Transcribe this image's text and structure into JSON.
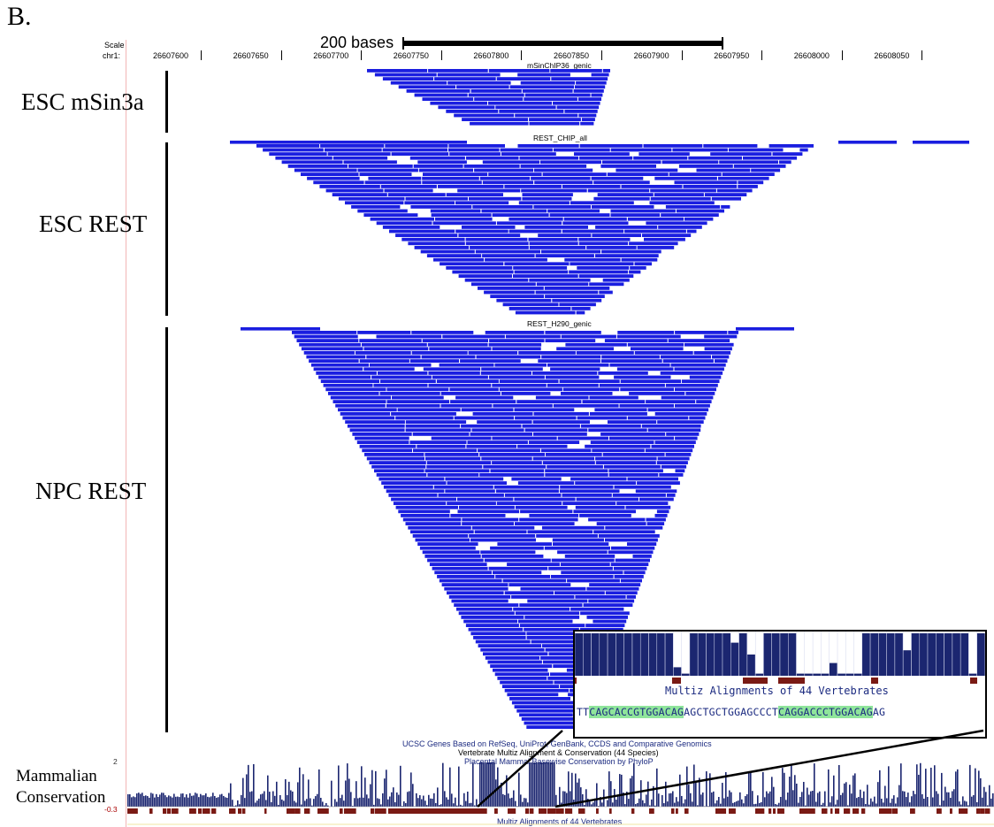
{
  "panel_letter": "B.",
  "scale": {
    "scale_label": "Scale",
    "chrom_label": "chr1:",
    "bar_label": "200 bases",
    "ticks": [
      "26607600",
      "26607650",
      "26607700",
      "26607750",
      "26607800",
      "26607850",
      "26607900",
      "26607950",
      "26608000",
      "26608050"
    ]
  },
  "tracks": [
    {
      "label": "ESC mSin3a",
      "title": "mSinChIP36_genic"
    },
    {
      "label": "ESC REST",
      "title": "REST_CHIP_all"
    },
    {
      "label": "NPC REST",
      "title": "REST_H290_genic"
    }
  ],
  "annotation_titles": [
    "UCSC Genes Based on RefSeq, UniProt, GenBank, CCDS and Comparative Genomics",
    "Vertebrate Multiz Alignment & Conservation (44 Species)",
    "Placental Mammal Basewise Conservation by PhyloP"
  ],
  "conservation": {
    "label_line1": "Mammalian",
    "label_line2": "Conservation",
    "ymax": "2",
    "ymin": "-0.3",
    "bottom_title": "Multiz Alignments of 44 Vertebrates"
  },
  "inset": {
    "title": "Multiz Alignments of 44 Vertebrates",
    "sequence": [
      {
        "text": "TT",
        "hl": false
      },
      {
        "text": "CAGCACCGTGGACAG",
        "hl": true
      },
      {
        "text": "AGCTGCTGGAGCCCT",
        "hl": false
      },
      {
        "text": "CAGGACCCTGGACAG",
        "hl": true
      },
      {
        "text": "AG",
        "hl": false
      }
    ]
  },
  "colors": {
    "reads": "#1a1ee0",
    "conservation": "#1b2670",
    "alignment_gap": "#7a1a14"
  }
}
